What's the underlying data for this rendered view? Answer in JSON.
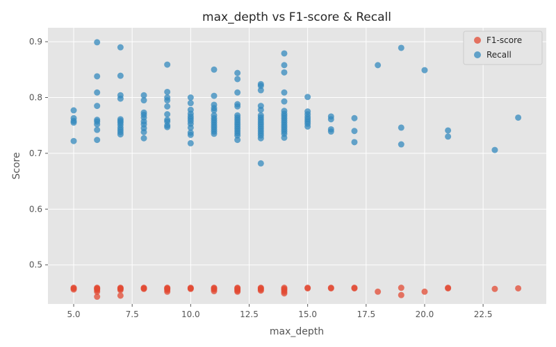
{
  "chart_data": {
    "type": "scatter",
    "title": "max_depth vs F1-score & Recall",
    "xlabel": "max_depth",
    "ylabel": "Score",
    "xlim": [
      3.9,
      25.2
    ],
    "ylim": [
      0.43,
      0.925
    ],
    "xticks": [
      5.0,
      7.5,
      10.0,
      12.5,
      15.0,
      17.5,
      20.0,
      22.5
    ],
    "xtick_labels": [
      "5.0",
      "7.5",
      "10.0",
      "12.5",
      "15.0",
      "17.5",
      "20.0",
      "22.5"
    ],
    "yticks": [
      0.5,
      0.6,
      0.7,
      0.8,
      0.9
    ],
    "ytick_labels": [
      "0.5",
      "0.6",
      "0.7",
      "0.8",
      "0.9"
    ],
    "grid": true,
    "legend_position": "top-right",
    "series": [
      {
        "name": "F1-score",
        "color": "#E24A33",
        "points": [
          [
            5,
            0.456
          ],
          [
            5,
            0.458
          ],
          [
            5,
            0.459
          ],
          [
            6,
            0.443
          ],
          [
            6,
            0.452
          ],
          [
            6,
            0.455
          ],
          [
            6,
            0.457
          ],
          [
            6,
            0.458
          ],
          [
            6,
            0.459
          ],
          [
            7,
            0.445
          ],
          [
            7,
            0.455
          ],
          [
            7,
            0.457
          ],
          [
            7,
            0.458
          ],
          [
            7,
            0.459
          ],
          [
            8,
            0.457
          ],
          [
            8,
            0.458
          ],
          [
            8,
            0.459
          ],
          [
            9,
            0.452
          ],
          [
            9,
            0.455
          ],
          [
            9,
            0.457
          ],
          [
            9,
            0.458
          ],
          [
            9,
            0.459
          ],
          [
            10,
            0.457
          ],
          [
            10,
            0.458
          ],
          [
            10,
            0.459
          ],
          [
            11,
            0.453
          ],
          [
            11,
            0.456
          ],
          [
            11,
            0.458
          ],
          [
            11,
            0.459
          ],
          [
            12,
            0.452
          ],
          [
            12,
            0.454
          ],
          [
            12,
            0.456
          ],
          [
            12,
            0.458
          ],
          [
            12,
            0.459
          ],
          [
            13,
            0.454
          ],
          [
            13,
            0.456
          ],
          [
            13,
            0.458
          ],
          [
            13,
            0.459
          ],
          [
            14,
            0.449
          ],
          [
            14,
            0.452
          ],
          [
            14,
            0.455
          ],
          [
            14,
            0.457
          ],
          [
            14,
            0.459
          ],
          [
            15,
            0.458
          ],
          [
            15,
            0.459
          ],
          [
            16,
            0.458
          ],
          [
            16,
            0.459
          ],
          [
            17,
            0.458
          ],
          [
            17,
            0.459
          ],
          [
            18,
            0.452
          ],
          [
            19,
            0.446
          ],
          [
            19,
            0.459
          ],
          [
            20,
            0.452
          ],
          [
            21,
            0.458
          ],
          [
            21,
            0.459
          ],
          [
            23,
            0.457
          ],
          [
            24,
            0.458
          ]
        ]
      },
      {
        "name": "Recall",
        "color": "#348ABD",
        "points": [
          [
            5,
            0.777
          ],
          [
            5,
            0.763
          ],
          [
            5,
            0.758
          ],
          [
            5,
            0.755
          ],
          [
            5,
            0.722
          ],
          [
            6,
            0.899
          ],
          [
            6,
            0.838
          ],
          [
            6,
            0.809
          ],
          [
            6,
            0.785
          ],
          [
            6,
            0.76
          ],
          [
            6,
            0.757
          ],
          [
            6,
            0.752
          ],
          [
            6,
            0.742
          ],
          [
            6,
            0.724
          ],
          [
            7,
            0.89
          ],
          [
            7,
            0.839
          ],
          [
            7,
            0.804
          ],
          [
            7,
            0.798
          ],
          [
            7,
            0.761
          ],
          [
            7,
            0.758
          ],
          [
            7,
            0.755
          ],
          [
            7,
            0.751
          ],
          [
            7,
            0.746
          ],
          [
            7,
            0.742
          ],
          [
            7,
            0.738
          ],
          [
            7,
            0.734
          ],
          [
            8,
            0.804
          ],
          [
            8,
            0.795
          ],
          [
            8,
            0.773
          ],
          [
            8,
            0.769
          ],
          [
            8,
            0.764
          ],
          [
            8,
            0.757
          ],
          [
            8,
            0.752
          ],
          [
            8,
            0.745
          ],
          [
            8,
            0.738
          ],
          [
            8,
            0.727
          ],
          [
            9,
            0.859
          ],
          [
            9,
            0.81
          ],
          [
            9,
            0.8
          ],
          [
            9,
            0.795
          ],
          [
            9,
            0.784
          ],
          [
            9,
            0.77
          ],
          [
            9,
            0.76
          ],
          [
            9,
            0.757
          ],
          [
            9,
            0.75
          ],
          [
            9,
            0.747
          ],
          [
            10,
            0.8
          ],
          [
            10,
            0.79
          ],
          [
            10,
            0.778
          ],
          [
            10,
            0.771
          ],
          [
            10,
            0.766
          ],
          [
            10,
            0.762
          ],
          [
            10,
            0.758
          ],
          [
            10,
            0.753
          ],
          [
            10,
            0.746
          ],
          [
            10,
            0.737
          ],
          [
            10,
            0.733
          ],
          [
            10,
            0.718
          ],
          [
            11,
            0.85
          ],
          [
            11,
            0.803
          ],
          [
            11,
            0.787
          ],
          [
            11,
            0.781
          ],
          [
            11,
            0.777
          ],
          [
            11,
            0.768
          ],
          [
            11,
            0.763
          ],
          [
            11,
            0.759
          ],
          [
            11,
            0.755
          ],
          [
            11,
            0.751
          ],
          [
            11,
            0.747
          ],
          [
            11,
            0.743
          ],
          [
            11,
            0.739
          ],
          [
            11,
            0.735
          ],
          [
            12,
            0.844
          ],
          [
            12,
            0.833
          ],
          [
            12,
            0.809
          ],
          [
            12,
            0.788
          ],
          [
            12,
            0.784
          ],
          [
            12,
            0.768
          ],
          [
            12,
            0.764
          ],
          [
            12,
            0.76
          ],
          [
            12,
            0.756
          ],
          [
            12,
            0.752
          ],
          [
            12,
            0.748
          ],
          [
            12,
            0.744
          ],
          [
            12,
            0.74
          ],
          [
            12,
            0.736
          ],
          [
            12,
            0.732
          ],
          [
            12,
            0.724
          ],
          [
            13,
            0.824
          ],
          [
            13,
            0.821
          ],
          [
            13,
            0.813
          ],
          [
            13,
            0.785
          ],
          [
            13,
            0.778
          ],
          [
            13,
            0.768
          ],
          [
            13,
            0.764
          ],
          [
            13,
            0.76
          ],
          [
            13,
            0.756
          ],
          [
            13,
            0.752
          ],
          [
            13,
            0.748
          ],
          [
            13,
            0.744
          ],
          [
            13,
            0.74
          ],
          [
            13,
            0.736
          ],
          [
            13,
            0.732
          ],
          [
            13,
            0.727
          ],
          [
            13,
            0.682
          ],
          [
            14,
            0.879
          ],
          [
            14,
            0.858
          ],
          [
            14,
            0.845
          ],
          [
            14,
            0.809
          ],
          [
            14,
            0.793
          ],
          [
            14,
            0.776
          ],
          [
            14,
            0.771
          ],
          [
            14,
            0.767
          ],
          [
            14,
            0.763
          ],
          [
            14,
            0.759
          ],
          [
            14,
            0.755
          ],
          [
            14,
            0.751
          ],
          [
            14,
            0.747
          ],
          [
            14,
            0.743
          ],
          [
            14,
            0.739
          ],
          [
            14,
            0.735
          ],
          [
            14,
            0.728
          ],
          [
            15,
            0.801
          ],
          [
            15,
            0.775
          ],
          [
            15,
            0.77
          ],
          [
            15,
            0.765
          ],
          [
            15,
            0.761
          ],
          [
            15,
            0.757
          ],
          [
            15,
            0.753
          ],
          [
            15,
            0.748
          ],
          [
            16,
            0.766
          ],
          [
            16,
            0.761
          ],
          [
            16,
            0.743
          ],
          [
            16,
            0.739
          ],
          [
            17,
            0.763
          ],
          [
            17,
            0.74
          ],
          [
            17,
            0.72
          ],
          [
            18,
            0.858
          ],
          [
            19,
            0.889
          ],
          [
            19,
            0.746
          ],
          [
            19,
            0.716
          ],
          [
            20,
            0.849
          ],
          [
            21,
            0.741
          ],
          [
            21,
            0.73
          ],
          [
            23,
            0.706
          ],
          [
            24,
            0.764
          ]
        ]
      }
    ]
  }
}
